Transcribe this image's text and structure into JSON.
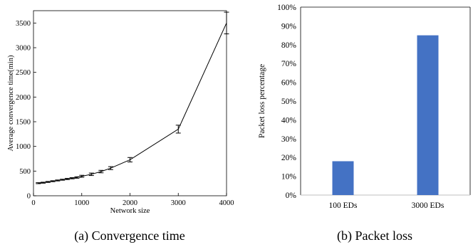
{
  "chart_data": [
    {
      "type": "line",
      "caption": "(a) Convergence time",
      "xlabel": "Network size",
      "ylabel": "Average convergence time(min)",
      "xlim": [
        0,
        4000
      ],
      "ylim": [
        0,
        3750
      ],
      "xticks": [
        0,
        1000,
        2000,
        3000,
        4000
      ],
      "yticks": [
        0,
        500,
        1000,
        1500,
        2000,
        2500,
        3000,
        3500
      ],
      "grid": false,
      "error_bars": true,
      "x": [
        100,
        200,
        300,
        400,
        500,
        600,
        700,
        800,
        900,
        1000,
        1200,
        1400,
        1600,
        2000,
        3000,
        4000
      ],
      "y": [
        255,
        265,
        280,
        295,
        310,
        325,
        340,
        355,
        370,
        395,
        435,
        490,
        560,
        730,
        1350,
        3500
      ],
      "err": [
        10,
        10,
        10,
        10,
        10,
        10,
        12,
        12,
        15,
        20,
        25,
        25,
        30,
        45,
        80,
        220
      ]
    },
    {
      "type": "bar",
      "caption": "(b) Packet loss",
      "xlabel": "",
      "ylabel": "Packet loss percentage",
      "categories": [
        "100 EDs",
        "3000 EDs"
      ],
      "values": [
        18,
        85
      ],
      "ylim": [
        0,
        100
      ],
      "yticks": [
        0,
        10,
        20,
        30,
        40,
        50,
        60,
        70,
        80,
        90,
        100
      ],
      "ytick_format": "percent",
      "grid": false,
      "color": "#4472c4"
    }
  ]
}
